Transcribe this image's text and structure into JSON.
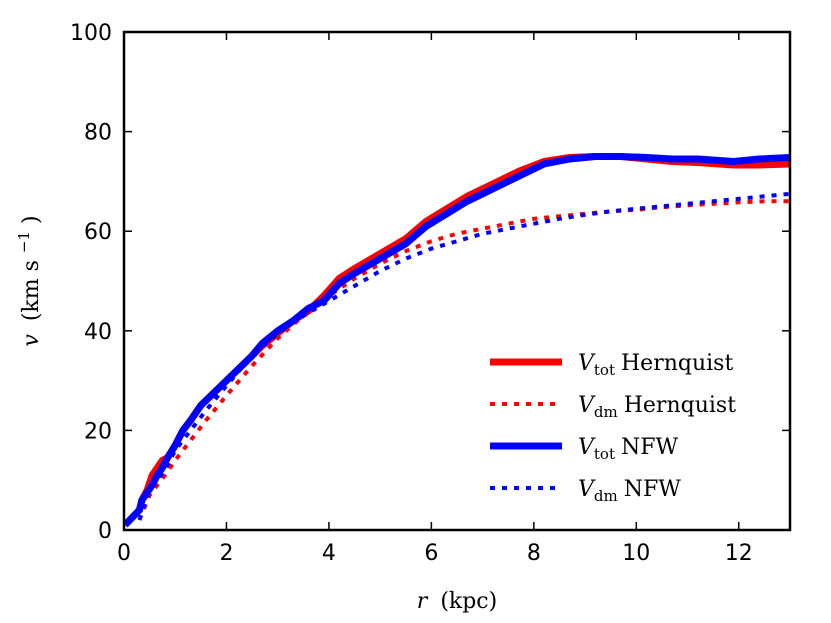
{
  "chart_data": {
    "type": "line",
    "title": "",
    "xlabel": "r (kpc)",
    "xlabel_parts": {
      "var": "r",
      "unit": "(kpc)"
    },
    "ylabel": "v (km s−1)",
    "ylabel_parts": {
      "var": "v",
      "unit": "(km s",
      "exp": "−1",
      "close": ")"
    },
    "xlim": [
      0,
      13
    ],
    "ylim": [
      0,
      100
    ],
    "xticks": [
      0,
      2,
      4,
      6,
      8,
      10,
      12
    ],
    "yticks": [
      0,
      20,
      40,
      60,
      80,
      100
    ],
    "grid": false,
    "legend_position": "bottom-right",
    "series": [
      {
        "name": "V_tot Hernquist",
        "legend": {
          "var": "V",
          "sub": "tot",
          "text": "Hernquist"
        },
        "color": "#ff0000",
        "style": "solid",
        "x": [
          0.02,
          0.3,
          0.35,
          0.45,
          0.55,
          0.65,
          0.75,
          0.85,
          1.0,
          1.15,
          1.3,
          1.5,
          1.7,
          1.9,
          2.1,
          2.3,
          2.5,
          2.7,
          3.0,
          3.3,
          3.6,
          3.9,
          4.2,
          4.5,
          5.0,
          5.5,
          5.9,
          6.3,
          6.7,
          7.2,
          7.7,
          8.2,
          8.7,
          9.2,
          9.7,
          10.2,
          10.7,
          11.2,
          11.9,
          12.4,
          13.0
        ],
        "y": [
          1,
          4,
          6,
          8,
          11,
          12.5,
          14,
          14.5,
          17,
          20,
          22,
          25,
          27,
          29,
          31,
          33,
          35,
          37,
          39.5,
          42,
          44,
          47,
          50.5,
          52.5,
          55.5,
          58.5,
          62,
          64.5,
          67,
          69.5,
          72,
          74,
          74.8,
          75,
          75,
          74.5,
          74,
          73.8,
          73.3,
          73.3,
          73.5
        ]
      },
      {
        "name": "V_dm Hernquist",
        "legend": {
          "var": "V",
          "sub": "dm",
          "text": "Hernquist"
        },
        "color": "#ff0000",
        "style": "dotted",
        "x": [
          0.3,
          0.5,
          0.8,
          1.0,
          1.3,
          1.6,
          2.0,
          2.5,
          3.0,
          3.5,
          4.0,
          4.5,
          5.0,
          5.5,
          6.0,
          6.5,
          7.0,
          7.5,
          8.0,
          8.5,
          9.0,
          9.5,
          10.0,
          10.5,
          11.0,
          11.5,
          12.0,
          12.5,
          13.0
        ],
        "y": [
          2,
          7,
          11,
          14,
          18,
          22,
          27,
          33,
          38.5,
          43,
          47,
          50.5,
          53.5,
          56,
          58,
          59.5,
          60.5,
          61.5,
          62.5,
          63,
          63.5,
          64,
          64.3,
          64.8,
          65.2,
          65.5,
          65.8,
          66,
          66
        ]
      },
      {
        "name": "V_tot NFW",
        "legend": {
          "var": "V",
          "sub": "tot",
          "text": "NFW"
        },
        "color": "#0000ff",
        "style": "solid",
        "x": [
          0.02,
          0.3,
          0.35,
          0.45,
          0.55,
          0.65,
          0.75,
          0.85,
          1.0,
          1.15,
          1.3,
          1.5,
          1.7,
          1.9,
          2.1,
          2.3,
          2.5,
          2.7,
          3.0,
          3.3,
          3.6,
          3.9,
          4.2,
          4.5,
          5.0,
          5.5,
          5.9,
          6.3,
          6.7,
          7.2,
          7.7,
          8.2,
          8.7,
          9.2,
          9.7,
          10.2,
          10.7,
          11.2,
          11.9,
          12.4,
          13.0
        ],
        "y": [
          1,
          4,
          6,
          7.5,
          9,
          11,
          12.5,
          14.5,
          17,
          20,
          22,
          25,
          27,
          29,
          31,
          33,
          35,
          37.5,
          40,
          42,
          44.5,
          46,
          49.5,
          51.5,
          54.5,
          57.5,
          61,
          63.5,
          66,
          68.5,
          71,
          73.5,
          74.5,
          75,
          75,
          74.8,
          74.5,
          74.5,
          74,
          74.5,
          74.8
        ]
      },
      {
        "name": "V_dm NFW",
        "legend": {
          "var": "V",
          "sub": "dm",
          "text": "NFW"
        },
        "color": "#0000ff",
        "style": "dotted",
        "x": [
          0.3,
          0.5,
          0.8,
          1.0,
          1.3,
          1.6,
          2.0,
          2.5,
          3.0,
          3.5,
          4.0,
          4.5,
          5.0,
          5.5,
          6.0,
          6.5,
          7.0,
          7.5,
          8.0,
          8.5,
          9.0,
          9.5,
          10.0,
          10.5,
          11.0,
          11.5,
          12.0,
          12.5,
          13.0
        ],
        "y": [
          2,
          8,
          12,
          16,
          20,
          24,
          29,
          35,
          39.5,
          43,
          46,
          49,
          52,
          54.5,
          56.5,
          58,
          59.5,
          60.5,
          61.5,
          62.5,
          63.3,
          64,
          64.5,
          65,
          65.5,
          66,
          66.5,
          67,
          67.5
        ]
      }
    ]
  }
}
